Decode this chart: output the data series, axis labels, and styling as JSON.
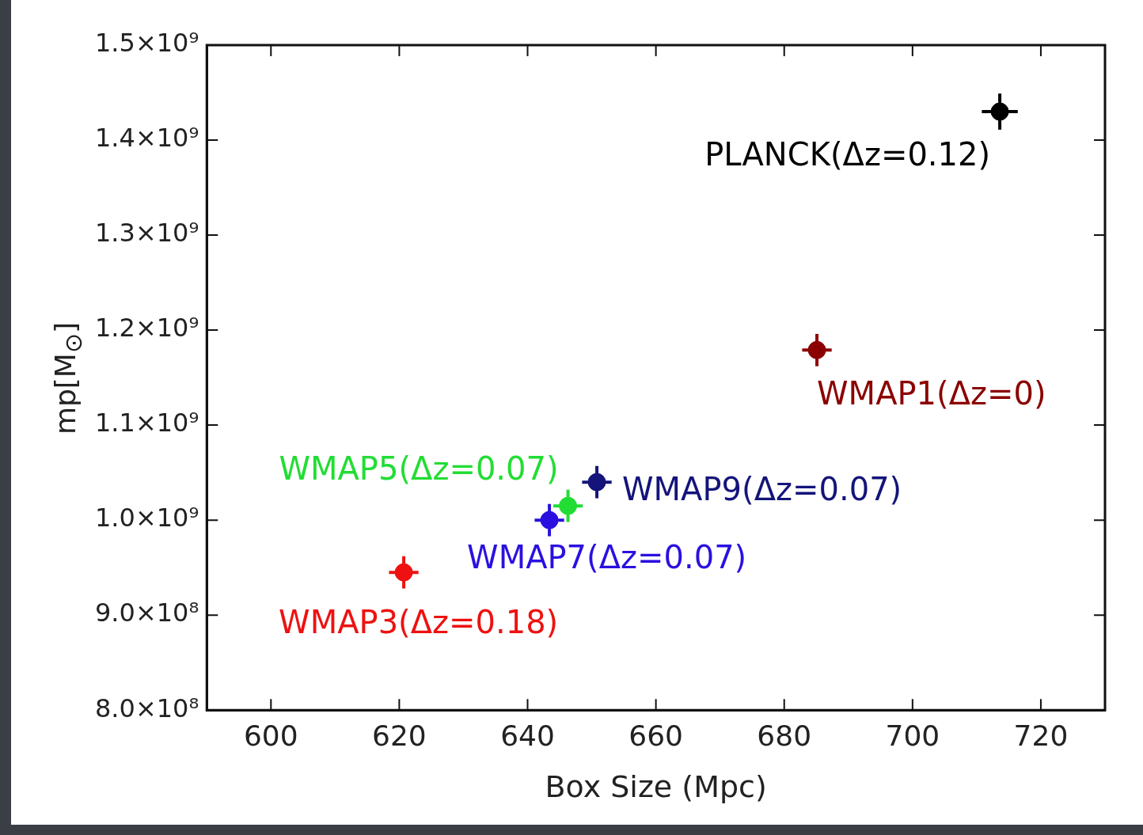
{
  "chart_data": {
    "type": "scatter",
    "xlabel": "Box Size (Mpc)",
    "ylabel": "mp[M$_{⊙}$]",
    "xlim": [
      590,
      730
    ],
    "xticks": [
      600,
      620,
      640,
      660,
      680,
      700,
      720
    ],
    "ylim": [
      800000000,
      1500000000
    ],
    "yticks": [
      {
        "value": 800000000,
        "label": "8.0×10⁸"
      },
      {
        "value": 900000000,
        "label": "9.0×10⁸"
      },
      {
        "value": 1000000000,
        "label": "1.0×10⁹"
      },
      {
        "value": 1100000000,
        "label": "1.1×10⁹"
      },
      {
        "value": 1200000000,
        "label": "1.2×10⁹"
      },
      {
        "value": 1300000000,
        "label": "1.3×10⁹"
      },
      {
        "value": 1400000000,
        "label": "1.4×10⁹"
      },
      {
        "value": 1500000000,
        "label": "1.5×10⁹"
      }
    ],
    "marker": "circle",
    "grid": false,
    "legend": false,
    "series": [
      {
        "name": "PLANCK(Δz=0.12)",
        "color": "#000000",
        "x": [
          713.6
        ],
        "values": [
          1430000000
        ],
        "errors": [
          19000000
        ],
        "xerrors": [
          2.8
        ]
      },
      {
        "name": "WMAP1(Δz=0)",
        "color": "#8b0000",
        "x": [
          685.1
        ],
        "values": [
          1179000000
        ],
        "errors": [
          17000000
        ],
        "xerrors": [
          2.3
        ]
      },
      {
        "name": "WMAP9(Δz=0.07)",
        "color": "#14147a",
        "x": [
          650.8
        ],
        "values": [
          1040000000
        ],
        "errors": [
          17000000
        ],
        "xerrors": [
          2.3
        ]
      },
      {
        "name": "WMAP5(Δz=0.07)",
        "color": "#22dd33",
        "x": [
          646.3
        ],
        "values": [
          1015000000
        ],
        "errors": [
          17000000
        ],
        "xerrors": [
          2.3
        ]
      },
      {
        "name": "WMAP7(Δz=0.07)",
        "color": "#2a10e0",
        "x": [
          643.4
        ],
        "values": [
          1000000000
        ],
        "errors": [
          17000000
        ],
        "xerrors": [
          2.3
        ]
      },
      {
        "name": "WMAP3(Δz=0.18)",
        "color": "#ee1111",
        "x": [
          620.7
        ],
        "values": [
          945000000
        ],
        "errors": [
          17000000
        ],
        "xerrors": [
          2.3
        ]
      }
    ]
  }
}
